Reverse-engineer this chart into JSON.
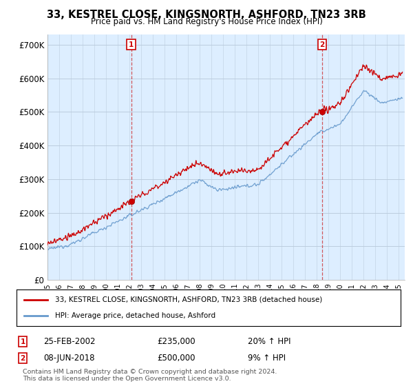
{
  "title": "33, KESTREL CLOSE, KINGSNORTH, ASHFORD, TN23 3RB",
  "subtitle": "Price paid vs. HM Land Registry's House Price Index (HPI)",
  "ylabel_ticks": [
    "£0",
    "£100K",
    "£200K",
    "£300K",
    "£400K",
    "£500K",
    "£600K",
    "£700K"
  ],
  "ylim": [
    0,
    730000
  ],
  "xlim_start": 1995.0,
  "xlim_end": 2025.5,
  "marker1_x": 2002.15,
  "marker1_y": 235000,
  "marker1_label": "1",
  "marker2_x": 2018.44,
  "marker2_y": 500000,
  "marker2_label": "2",
  "annotation1_date": "25-FEB-2002",
  "annotation1_price": "£235,000",
  "annotation1_hpi": "20% ↑ HPI",
  "annotation2_date": "08-JUN-2018",
  "annotation2_price": "£500,000",
  "annotation2_hpi": "9% ↑ HPI",
  "legend_line1": "33, KESTREL CLOSE, KINGSNORTH, ASHFORD, TN23 3RB (detached house)",
  "legend_line2": "HPI: Average price, detached house, Ashford",
  "footer": "Contains HM Land Registry data © Crown copyright and database right 2024.\nThis data is licensed under the Open Government Licence v3.0.",
  "house_color": "#cc0000",
  "hpi_color": "#6699cc",
  "plot_bg_color": "#ddeeff",
  "background_color": "#ffffff",
  "grid_color": "#bbccdd"
}
